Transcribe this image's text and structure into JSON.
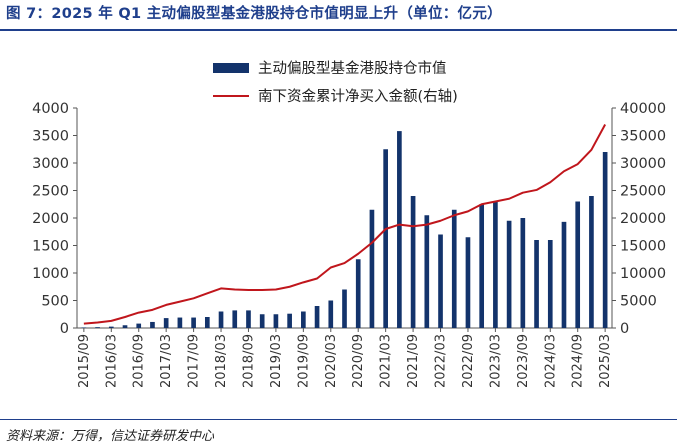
{
  "title": "图 7：2025 年 Q1 主动偏股型基金港股持仓市值明显上升（单位：亿元）",
  "source": "资料来源：万得，信达证券研发中心",
  "colors": {
    "bar": "#13336b",
    "line": "#c0161c",
    "title": "#1f3f8c"
  },
  "chart_data": {
    "type": "bar",
    "title": "",
    "xlabel": "",
    "ylabel": "",
    "ylim_left": [
      0,
      4000
    ],
    "ylim_right": [
      0,
      40000
    ],
    "grid": false,
    "legend_position": "top",
    "categories": [
      "2015/09",
      "2015/12",
      "2016/03",
      "2016/06",
      "2016/09",
      "2016/12",
      "2017/03",
      "2017/06",
      "2017/09",
      "2017/12",
      "2018/03",
      "2018/06",
      "2018/09",
      "2018/12",
      "2019/03",
      "2019/06",
      "2019/09",
      "2019/12",
      "2020/03",
      "2020/06",
      "2020/09",
      "2020/12",
      "2021/03",
      "2021/06",
      "2021/09",
      "2021/12",
      "2022/03",
      "2022/06",
      "2022/09",
      "2022/12",
      "2023/03",
      "2023/06",
      "2023/09",
      "2023/12",
      "2024/03",
      "2024/06",
      "2024/09",
      "2024/12",
      "2025/03"
    ],
    "xticks": [
      "2015/09",
      "2016/03",
      "2016/09",
      "2017/03",
      "2017/09",
      "2018/03",
      "2018/09",
      "2019/03",
      "2019/09",
      "2020/03",
      "2020/09",
      "2021/03",
      "2021/09",
      "2022/03",
      "2022/09",
      "2023/03",
      "2023/09",
      "2024/03",
      "2024/09",
      "2025/03"
    ],
    "left_ticks": [
      "0",
      "500",
      "1000",
      "1500",
      "2000",
      "2500",
      "3000",
      "3500",
      "4000"
    ],
    "right_ticks": [
      "0",
      "5000",
      "10000",
      "15000",
      "20000",
      "25000",
      "30000",
      "35000",
      "40000"
    ],
    "series": [
      {
        "name": "主动偏股型基金港股持仓市值",
        "type": "bar",
        "axis": "left",
        "values": [
          10,
          15,
          25,
          50,
          80,
          110,
          180,
          190,
          190,
          200,
          300,
          320,
          320,
          250,
          250,
          260,
          300,
          400,
          500,
          700,
          1250,
          2150,
          3250,
          3580,
          2400,
          2050,
          1700,
          2150,
          1650,
          2250,
          2300,
          1950,
          2000,
          1600,
          1600,
          1930,
          2300,
          2400,
          3200
        ]
      },
      {
        "name": "南下资金累计净买入金额(右轴)",
        "type": "line",
        "axis": "right",
        "values": [
          800,
          1000,
          1300,
          2000,
          2800,
          3300,
          4200,
          4800,
          5400,
          6300,
          7200,
          7000,
          6900,
          6900,
          7000,
          7500,
          8300,
          9000,
          11000,
          11800,
          13500,
          15500,
          18000,
          18800,
          18500,
          18800,
          19500,
          20500,
          21200,
          22500,
          23000,
          23500,
          24600,
          25100,
          26500,
          28500,
          29800,
          32400,
          37000
        ]
      }
    ]
  }
}
